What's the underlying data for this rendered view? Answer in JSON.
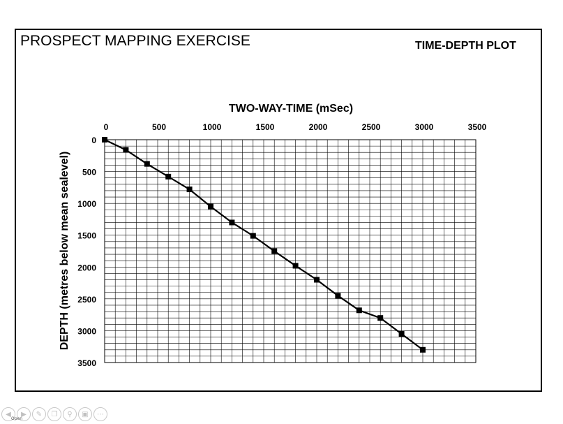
{
  "slide": {
    "title": "PROSPECT MAPPING EXERCISE",
    "subtitle": "TIME-DEPTH PLOT"
  },
  "chart_data": {
    "type": "line",
    "xlabel": "TWO-WAY-TIME (mSec)",
    "ylabel": "DEPTH (metres below mean sealevel)",
    "xlim": [
      0,
      3500
    ],
    "ylim": [
      0,
      3500
    ],
    "x_ticks": [
      0,
      500,
      1000,
      1500,
      2000,
      2500,
      3000,
      3500
    ],
    "y_ticks": [
      0,
      500,
      1000,
      1500,
      2000,
      2500,
      3000,
      3500
    ],
    "x_axis_position": "top",
    "y_axis_inverted": true,
    "grid": true,
    "minor_grid_step": 100,
    "series": [
      {
        "x": [
          0,
          200,
          400,
          600,
          800,
          1000,
          1200,
          1400,
          1600,
          1800,
          2000,
          2200,
          2400,
          2600,
          2800,
          3000
        ],
        "y": [
          0,
          160,
          380,
          580,
          780,
          1050,
          1300,
          1510,
          1750,
          1980,
          2200,
          2450,
          2680,
          2800,
          3050,
          3300
        ],
        "marker": "square",
        "color": "#000000"
      }
    ]
  },
  "toolbar": {
    "icons": [
      "prev-arrow-icon",
      "next-arrow-icon",
      "pen-icon",
      "copy-icon",
      "zoom-icon",
      "slide-icon",
      "more-icon"
    ],
    "open_label": "Open"
  }
}
